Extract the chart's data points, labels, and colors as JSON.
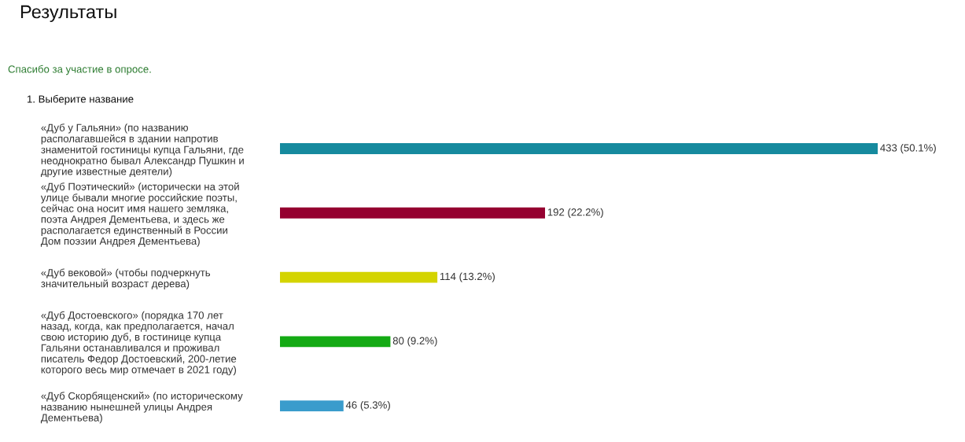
{
  "chart_data": {
    "type": "bar",
    "orientation": "horizontal",
    "title": "Результаты",
    "subtitle": "Спасибо за участие в опросе.",
    "annotations": [
      "1. Выберите название"
    ],
    "categories": [
      "«Дуб у Гальяни» (по названию\nрасполагавшейся в здании напротив\nзнаменитой гостиницы купца Гальяни, где\nнеоднократно бывал Александр Пушкин и\nдругие известные деятели)",
      "«Дуб Поэтический» (исторически на этой\nулице бывали многие российские поэты,\nсейчас она носит имя нашего земляка,\nпоэта Андрея Дементьева, и здесь же\nрасполагается единственный в России\nДом поэзии Андрея Дементьева)",
      "«Дуб вековой» (чтобы подчеркнуть\nзначительный возраст дерева)",
      "«Дуб Достоевского» (порядка 170 лет\nназад, когда, как предполагается, начал\nсвою историю дуб, в гостинице купца\nГальяни останавливался и проживал\nписатель Федор Достоевский, 200-летие\nкоторого весь мир отмечает в 2021 году)",
      "«Дуб Скорбященский» (по историческому\nназванию нынешней улицы Андрея\nДементьева)"
    ],
    "values": [
      433,
      192,
      114,
      80,
      46
    ],
    "colors": [
      "#168a9e",
      "#950030",
      "#d4d400",
      "#14aa14",
      "#3a9ccc"
    ],
    "value_labels": [
      "433 (50.1%)",
      "192 (22.2%)",
      "114 (13.2%)",
      "80 (9.2%)",
      "46 (5.3%)"
    ],
    "tick_labels": "y"
  }
}
